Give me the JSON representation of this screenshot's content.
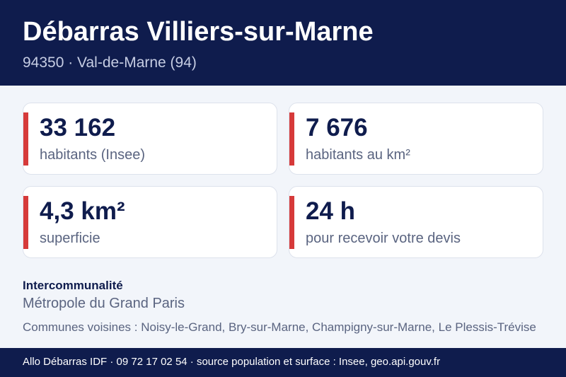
{
  "header": {
    "title": "Débarras Villiers-sur-Marne",
    "subtitle": "94350 · Val-de-Marne (94)"
  },
  "stats": [
    {
      "value": "33 162",
      "label": "habitants (Insee)"
    },
    {
      "value": "7 676",
      "label": "habitants au km²"
    },
    {
      "value": "4,3 km²",
      "label": "superficie"
    },
    {
      "value": "24 h",
      "label": "pour recevoir votre devis"
    }
  ],
  "intercommunalite": {
    "heading": "Intercommunalité",
    "value": "Métropole du Grand Paris"
  },
  "neighbors": "Communes voisines : Noisy-le-Grand, Bry-sur-Marne, Champigny-sur-Marne, Le Plessis-Trévise",
  "footer": "Allo Débarras IDF · 09 72 17 02 54 · source population et surface : Insee, geo.api.gouv.fr",
  "colors": {
    "navy": "#0f1c4d",
    "accent_red": "#d63a3a",
    "background": "#f2f5fa"
  }
}
